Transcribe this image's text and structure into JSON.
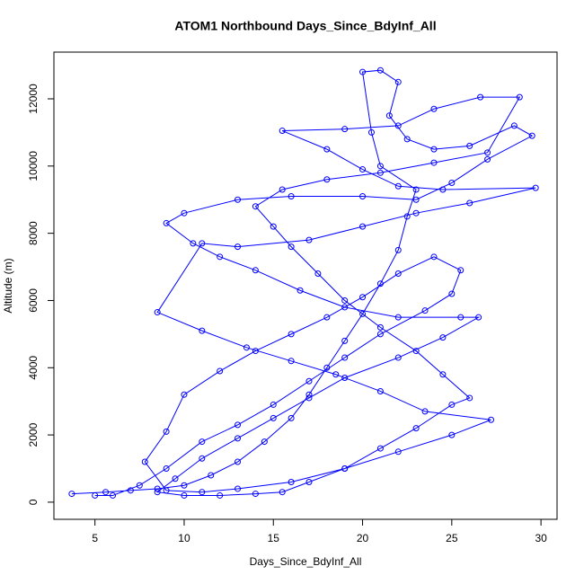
{
  "chart_data": {
    "type": "scatter",
    "connect": true,
    "title": "ATOM1 Northbound Days_Since_BdyInf_All",
    "x_label": "Days_Since_BdyInf_All",
    "y_label": "Altitude (m)",
    "color": "#0000ff",
    "x": [
      3.7,
      5.6,
      7.0,
      8.5,
      10,
      11.5,
      13,
      14.5,
      16,
      17,
      18,
      19,
      20,
      21,
      22,
      22.5,
      23,
      21,
      20.5,
      20,
      21,
      22,
      21.5,
      22.5,
      24,
      26,
      28.5,
      29.5,
      27,
      25,
      23,
      20,
      16,
      13,
      10,
      9,
      10.5,
      12,
      14,
      16.5,
      19,
      22,
      25.5,
      26.5,
      24.5,
      22,
      19,
      17,
      15,
      13,
      11,
      9.5,
      8.5,
      10,
      12,
      14,
      15.5,
      17,
      19,
      21,
      23,
      25,
      26,
      24.5,
      23,
      21,
      19,
      17.5,
      16,
      15,
      14,
      15.5,
      18,
      21,
      24,
      27,
      28.8,
      26.6,
      24,
      22,
      19,
      15.5,
      18,
      20,
      22,
      24.5,
      29.7,
      26,
      23,
      20,
      17,
      13,
      11,
      8.5,
      11,
      13.5,
      16,
      18.5,
      21,
      23.5,
      27.2,
      25,
      22,
      19,
      16,
      13,
      11,
      9,
      7.8,
      9,
      10,
      12,
      14,
      16,
      18,
      20,
      22,
      24,
      25.5,
      25,
      23.5,
      21,
      19,
      17,
      15,
      13,
      11,
      9,
      7.5,
      6,
      5
    ],
    "y": [
      250,
      300,
      350,
      400,
      500,
      800,
      1200,
      1800,
      2500,
      3200,
      4000,
      4800,
      5600,
      6500,
      7500,
      8500,
      9300,
      10000,
      11000,
      12800,
      12850,
      12500,
      11500,
      10800,
      10500,
      10600,
      11200,
      10900,
      10200,
      9500,
      9000,
      9100,
      9100,
      9000,
      8600,
      8300,
      7700,
      7300,
      6900,
      6300,
      5800,
      5500,
      5500,
      5500,
      4900,
      4300,
      3700,
      3100,
      2500,
      1900,
      1300,
      700,
      300,
      200,
      200,
      250,
      300,
      600,
      1000,
      1600,
      2200,
      2900,
      3100,
      3800,
      4500,
      5200,
      6000,
      6800,
      7600,
      8200,
      8800,
      9300,
      9600,
      9800,
      10100,
      10400,
      12050,
      12050,
      11700,
      11200,
      11100,
      11050,
      10500,
      9900,
      9400,
      9300,
      9350,
      8900,
      8600,
      8200,
      7800,
      7600,
      7700,
      5650,
      5100,
      4600,
      4200,
      3800,
      3300,
      2700,
      2450,
      2000,
      1500,
      1000,
      600,
      400,
      300,
      350,
      1200,
      2100,
      3200,
      3900,
      4500,
      5000,
      5500,
      6100,
      6800,
      7300,
      6900,
      6200,
      5700,
      5000,
      4300,
      3600,
      2900,
      2300,
      1800,
      1000,
      500,
      200,
      200
    ],
    "xlim": [
      2.7,
      30.9
    ],
    "ylim": [
      -510,
      13390
    ],
    "xticks": [
      5,
      10,
      15,
      20,
      25,
      30
    ],
    "yticks": [
      0,
      2000,
      4000,
      6000,
      8000,
      10000,
      12000
    ]
  }
}
